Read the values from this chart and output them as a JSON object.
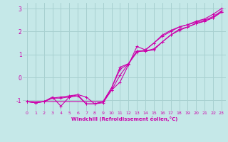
{
  "xlabel": "Windchill (Refroidissement éolien,°C)",
  "bg_color": "#c5e8e8",
  "grid_color": "#a8d0d0",
  "line_color": "#cc00aa",
  "xlim": [
    -0.5,
    23.5
  ],
  "ylim": [
    -1.45,
    3.25
  ],
  "yticks": [
    -1,
    0,
    1,
    2,
    3
  ],
  "xticks": [
    0,
    1,
    2,
    3,
    4,
    5,
    6,
    7,
    8,
    9,
    10,
    11,
    12,
    13,
    14,
    15,
    16,
    17,
    18,
    19,
    20,
    21,
    22,
    23
  ],
  "xtick_labels": [
    "0",
    "1",
    "2",
    "3",
    "4",
    "5",
    "6",
    "7",
    "8",
    "9",
    "10",
    "11",
    "12",
    "13",
    "14",
    "15",
    "16",
    "17",
    "18",
    "19",
    "20",
    "21",
    "22",
    "23"
  ],
  "lines": [
    {
      "x": [
        0,
        1,
        2,
        3,
        4,
        5,
        6,
        7,
        8,
        9,
        10,
        11,
        12,
        13,
        14,
        15,
        16,
        17,
        18,
        19,
        20,
        21,
        22,
        23
      ],
      "y": [
        -1.05,
        -1.1,
        -1.05,
        -0.9,
        -0.9,
        -0.85,
        -0.8,
        -1.15,
        -1.15,
        -1.1,
        -0.55,
        -0.2,
        0.55,
        1.35,
        1.2,
        1.5,
        1.85,
        2.05,
        2.2,
        2.3,
        2.45,
        2.55,
        2.75,
        3.0
      ]
    },
    {
      "x": [
        0,
        1,
        2,
        3,
        4,
        5,
        6,
        7,
        8,
        9,
        10,
        11,
        12,
        13,
        14,
        15,
        16,
        17,
        18,
        19,
        20,
        21,
        22,
        23
      ],
      "y": [
        -1.05,
        -1.1,
        -1.05,
        -0.9,
        -0.85,
        -0.8,
        -0.75,
        -1.15,
        -1.15,
        -1.05,
        -0.55,
        0.1,
        0.6,
        1.1,
        1.2,
        1.5,
        1.8,
        2.0,
        2.2,
        2.3,
        2.4,
        2.5,
        2.65,
        2.9
      ]
    },
    {
      "x": [
        0,
        9,
        10,
        11,
        12,
        13,
        14,
        15,
        16,
        17,
        18,
        19,
        20,
        21,
        22,
        23
      ],
      "y": [
        -1.05,
        -1.05,
        -0.45,
        0.45,
        0.6,
        1.15,
        1.15,
        1.2,
        1.55,
        1.85,
        2.1,
        2.2,
        2.35,
        2.45,
        2.6,
        2.85
      ]
    },
    {
      "x": [
        0,
        1,
        2,
        3,
        4,
        5,
        6,
        7,
        8,
        9,
        10,
        11,
        12,
        13,
        14,
        15,
        16,
        17,
        18,
        19,
        20,
        21,
        22,
        23
      ],
      "y": [
        -1.05,
        -1.1,
        -1.05,
        -0.85,
        -1.25,
        -0.85,
        -0.75,
        -0.85,
        -1.15,
        -1.05,
        -0.45,
        0.35,
        0.6,
        1.15,
        1.15,
        1.25,
        1.55,
        1.85,
        2.05,
        2.2,
        2.35,
        2.45,
        2.6,
        2.85
      ]
    }
  ]
}
